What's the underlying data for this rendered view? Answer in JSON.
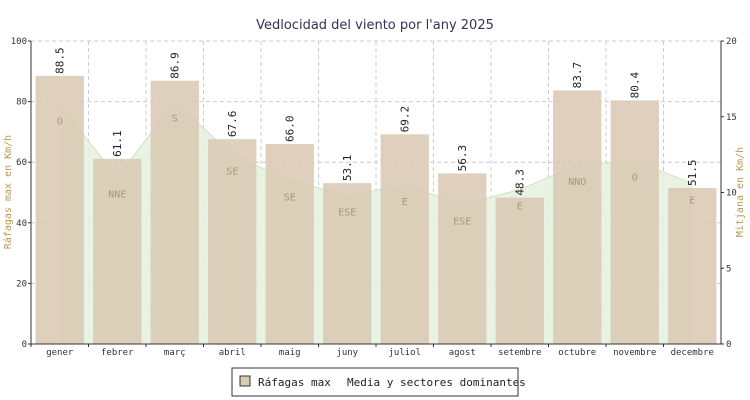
{
  "chart_data": {
    "type": "bar",
    "title": "Vedlocidad del viento por l'any 2025",
    "ylabel": "Ráfagas max en Km/h",
    "y2label": "Mitjana en Km/h",
    "ylim": [
      0,
      100
    ],
    "y2lim": [
      0,
      20
    ],
    "yticks": [
      "0",
      "20",
      "40",
      "60",
      "80",
      "100"
    ],
    "y2ticks": [
      "0",
      "5",
      "10",
      "15",
      "20"
    ],
    "grid": true,
    "legend_position": "bottom",
    "categories": [
      "gener",
      "febrer",
      "març",
      "abril",
      "maig",
      "juny",
      "juliol",
      "agost",
      "setembre",
      "octubre",
      "novembre",
      "decembre"
    ],
    "series": [
      {
        "name": "Ráfagas max",
        "type": "bar",
        "axis": "left",
        "color": "#d9cab4",
        "values": [
          88.5,
          61.1,
          86.9,
          67.6,
          66.0,
          53.1,
          69.2,
          56.3,
          48.3,
          83.7,
          80.4,
          51.5
        ],
        "labels": [
          "88.5",
          "61.1",
          "86.9",
          "67.6",
          "66.0",
          "53.1",
          "69.2",
          "56.3",
          "48.3",
          "83.7",
          "80.4",
          "51.5"
        ]
      },
      {
        "name": "Media y sectores dominantes",
        "type": "area",
        "axis": "right",
        "color": "#e6f2e0",
        "values": [
          15.8,
          11.0,
          16.0,
          12.5,
          10.8,
          9.8,
          10.5,
          9.2,
          10.2,
          11.8,
          12.1,
          10.6
        ],
        "sectors": [
          "O",
          "NNE",
          "S",
          "SE",
          "SE",
          "ESE",
          "E",
          "ESE",
          "E",
          "NNO",
          "O",
          "E"
        ]
      }
    ]
  }
}
